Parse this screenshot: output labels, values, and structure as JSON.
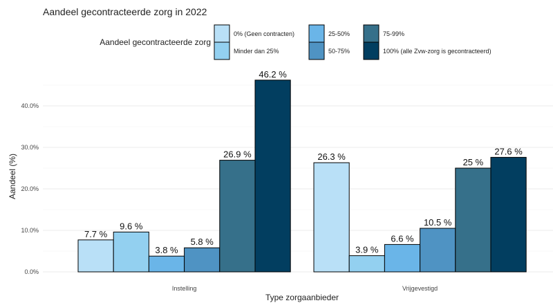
{
  "chart_data": {
    "type": "bar",
    "title": "Aandeel gecontracteerde zorg in 2022",
    "xlabel": "Type zorgaanbieder",
    "ylabel": "Aandeel (%)",
    "ylim": [
      0,
      48
    ],
    "yticks": [
      "0.0%",
      "10.0%",
      "20.0%",
      "30.0%",
      "40.0%"
    ],
    "grid": true,
    "legend_position": "top",
    "legend_title": "Aandeel gecontracteerde zorg",
    "categories": [
      "Instelling",
      "Vrijgevestigd"
    ],
    "series": [
      {
        "name": "0% (Geen contracten)",
        "color": "#b9e0f7",
        "values": [
          7.7,
          26.3
        ],
        "labels": [
          "7.7 %",
          "26.3 %"
        ]
      },
      {
        "name": "Minder dan 25%",
        "color": "#93d0f0",
        "values": [
          9.6,
          3.9
        ],
        "labels": [
          "9.6 %",
          "3.9 %"
        ]
      },
      {
        "name": "25-50%",
        "color": "#6ab5e8",
        "values": [
          3.8,
          6.6
        ],
        "labels": [
          "3.8 %",
          "6.6 %"
        ]
      },
      {
        "name": "50-75%",
        "color": "#4f93c3",
        "values": [
          5.8,
          10.5
        ],
        "labels": [
          "5.8 %",
          "10.5 %"
        ]
      },
      {
        "name": "75-99%",
        "color": "#36708a",
        "values": [
          26.9,
          25
        ],
        "labels": [
          "26.9 %",
          "25 %"
        ]
      },
      {
        "name": "100% (alle Zvw-zorg is gecontracteerd)",
        "color": "#023e60",
        "values": [
          46.2,
          27.6
        ],
        "labels": [
          "46.2 %",
          "27.6 %"
        ]
      }
    ]
  }
}
